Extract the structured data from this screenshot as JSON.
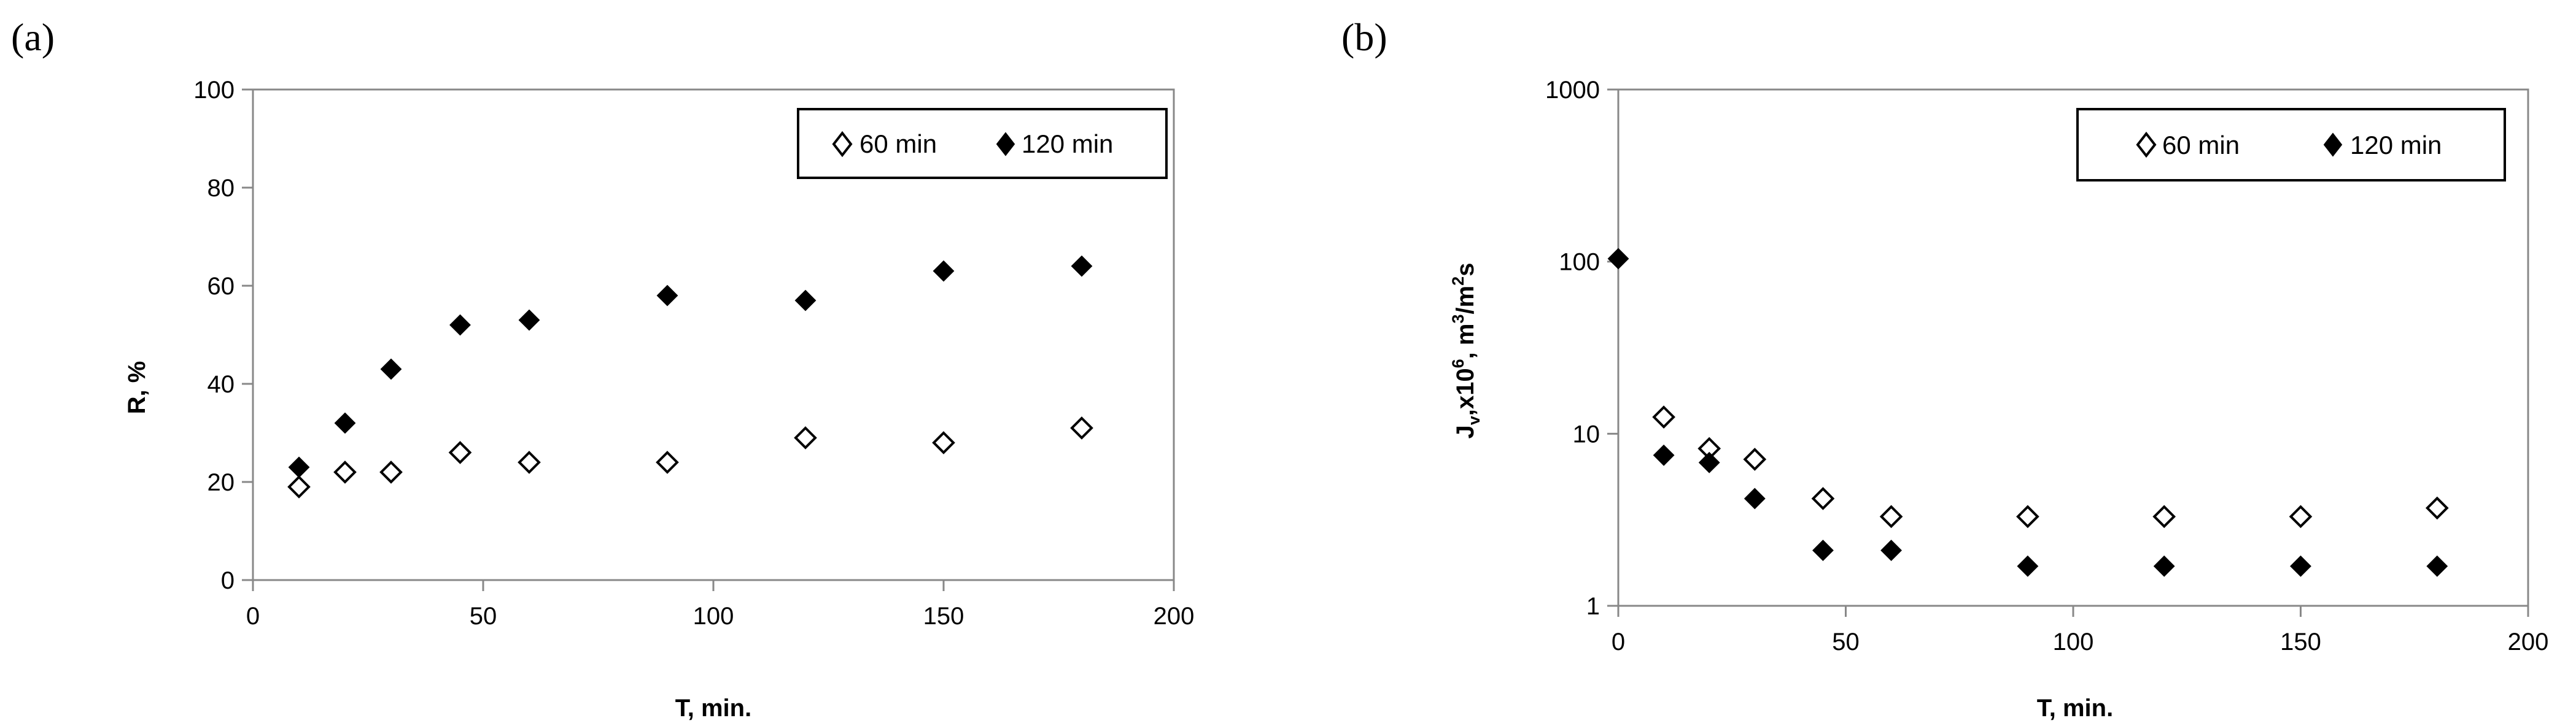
{
  "chart_data": [
    {
      "panel": "(a)",
      "type": "scatter",
      "xlabel": "T, min.",
      "ylabel": "R, %",
      "xlim": [
        0,
        200
      ],
      "ylim": [
        0,
        100
      ],
      "xticks": [
        0,
        50,
        100,
        150,
        200
      ],
      "yticks": [
        0,
        20,
        40,
        60,
        80,
        100
      ],
      "y_scale": "linear",
      "grid": false,
      "legend_position": "top-right",
      "series": [
        {
          "name": "60 min",
          "marker": "open-diamond",
          "color": "#000000",
          "points": [
            [
              10,
              19
            ],
            [
              20,
              22
            ],
            [
              30,
              22
            ],
            [
              45,
              26
            ],
            [
              60,
              24
            ],
            [
              90,
              24
            ],
            [
              120,
              29
            ],
            [
              150,
              28
            ],
            [
              180,
              31
            ]
          ]
        },
        {
          "name": "120 min",
          "marker": "filled-diamond",
          "color": "#000000",
          "points": [
            [
              10,
              23
            ],
            [
              20,
              32
            ],
            [
              30,
              43
            ],
            [
              45,
              52
            ],
            [
              60,
              53
            ],
            [
              90,
              58
            ],
            [
              120,
              57
            ],
            [
              150,
              63
            ],
            [
              180,
              64
            ]
          ]
        }
      ]
    },
    {
      "panel": "(b)",
      "type": "scatter",
      "xlabel": "T, min.",
      "ylabel_parts": [
        "J",
        "v",
        ",x10",
        "6",
        ", m",
        "3",
        "/m",
        "2",
        "s"
      ],
      "xlim": [
        0,
        200
      ],
      "ylim": [
        1,
        1000
      ],
      "xticks": [
        0,
        50,
        100,
        150,
        200
      ],
      "yticks": [
        1,
        10,
        100,
        1000
      ],
      "y_scale": "log",
      "grid": false,
      "legend_position": "top-right",
      "series": [
        {
          "name": "60 min",
          "marker": "open-diamond",
          "color": "#000000",
          "points": [
            [
              10,
              12.5
            ],
            [
              20,
              8.2
            ],
            [
              30,
              7.1
            ],
            [
              45,
              4.2
            ],
            [
              60,
              3.3
            ],
            [
              90,
              3.3
            ],
            [
              120,
              3.3
            ],
            [
              150,
              3.3
            ],
            [
              180,
              3.7
            ]
          ]
        },
        {
          "name": "120 min",
          "marker": "filled-diamond",
          "color": "#000000",
          "points": [
            [
              0,
              104
            ],
            [
              10,
              7.5
            ],
            [
              20,
              6.8
            ],
            [
              30,
              4.2
            ],
            [
              45,
              2.1
            ],
            [
              60,
              2.1
            ],
            [
              90,
              1.7
            ],
            [
              120,
              1.7
            ],
            [
              150,
              1.7
            ],
            [
              180,
              1.7
            ]
          ]
        }
      ]
    }
  ]
}
